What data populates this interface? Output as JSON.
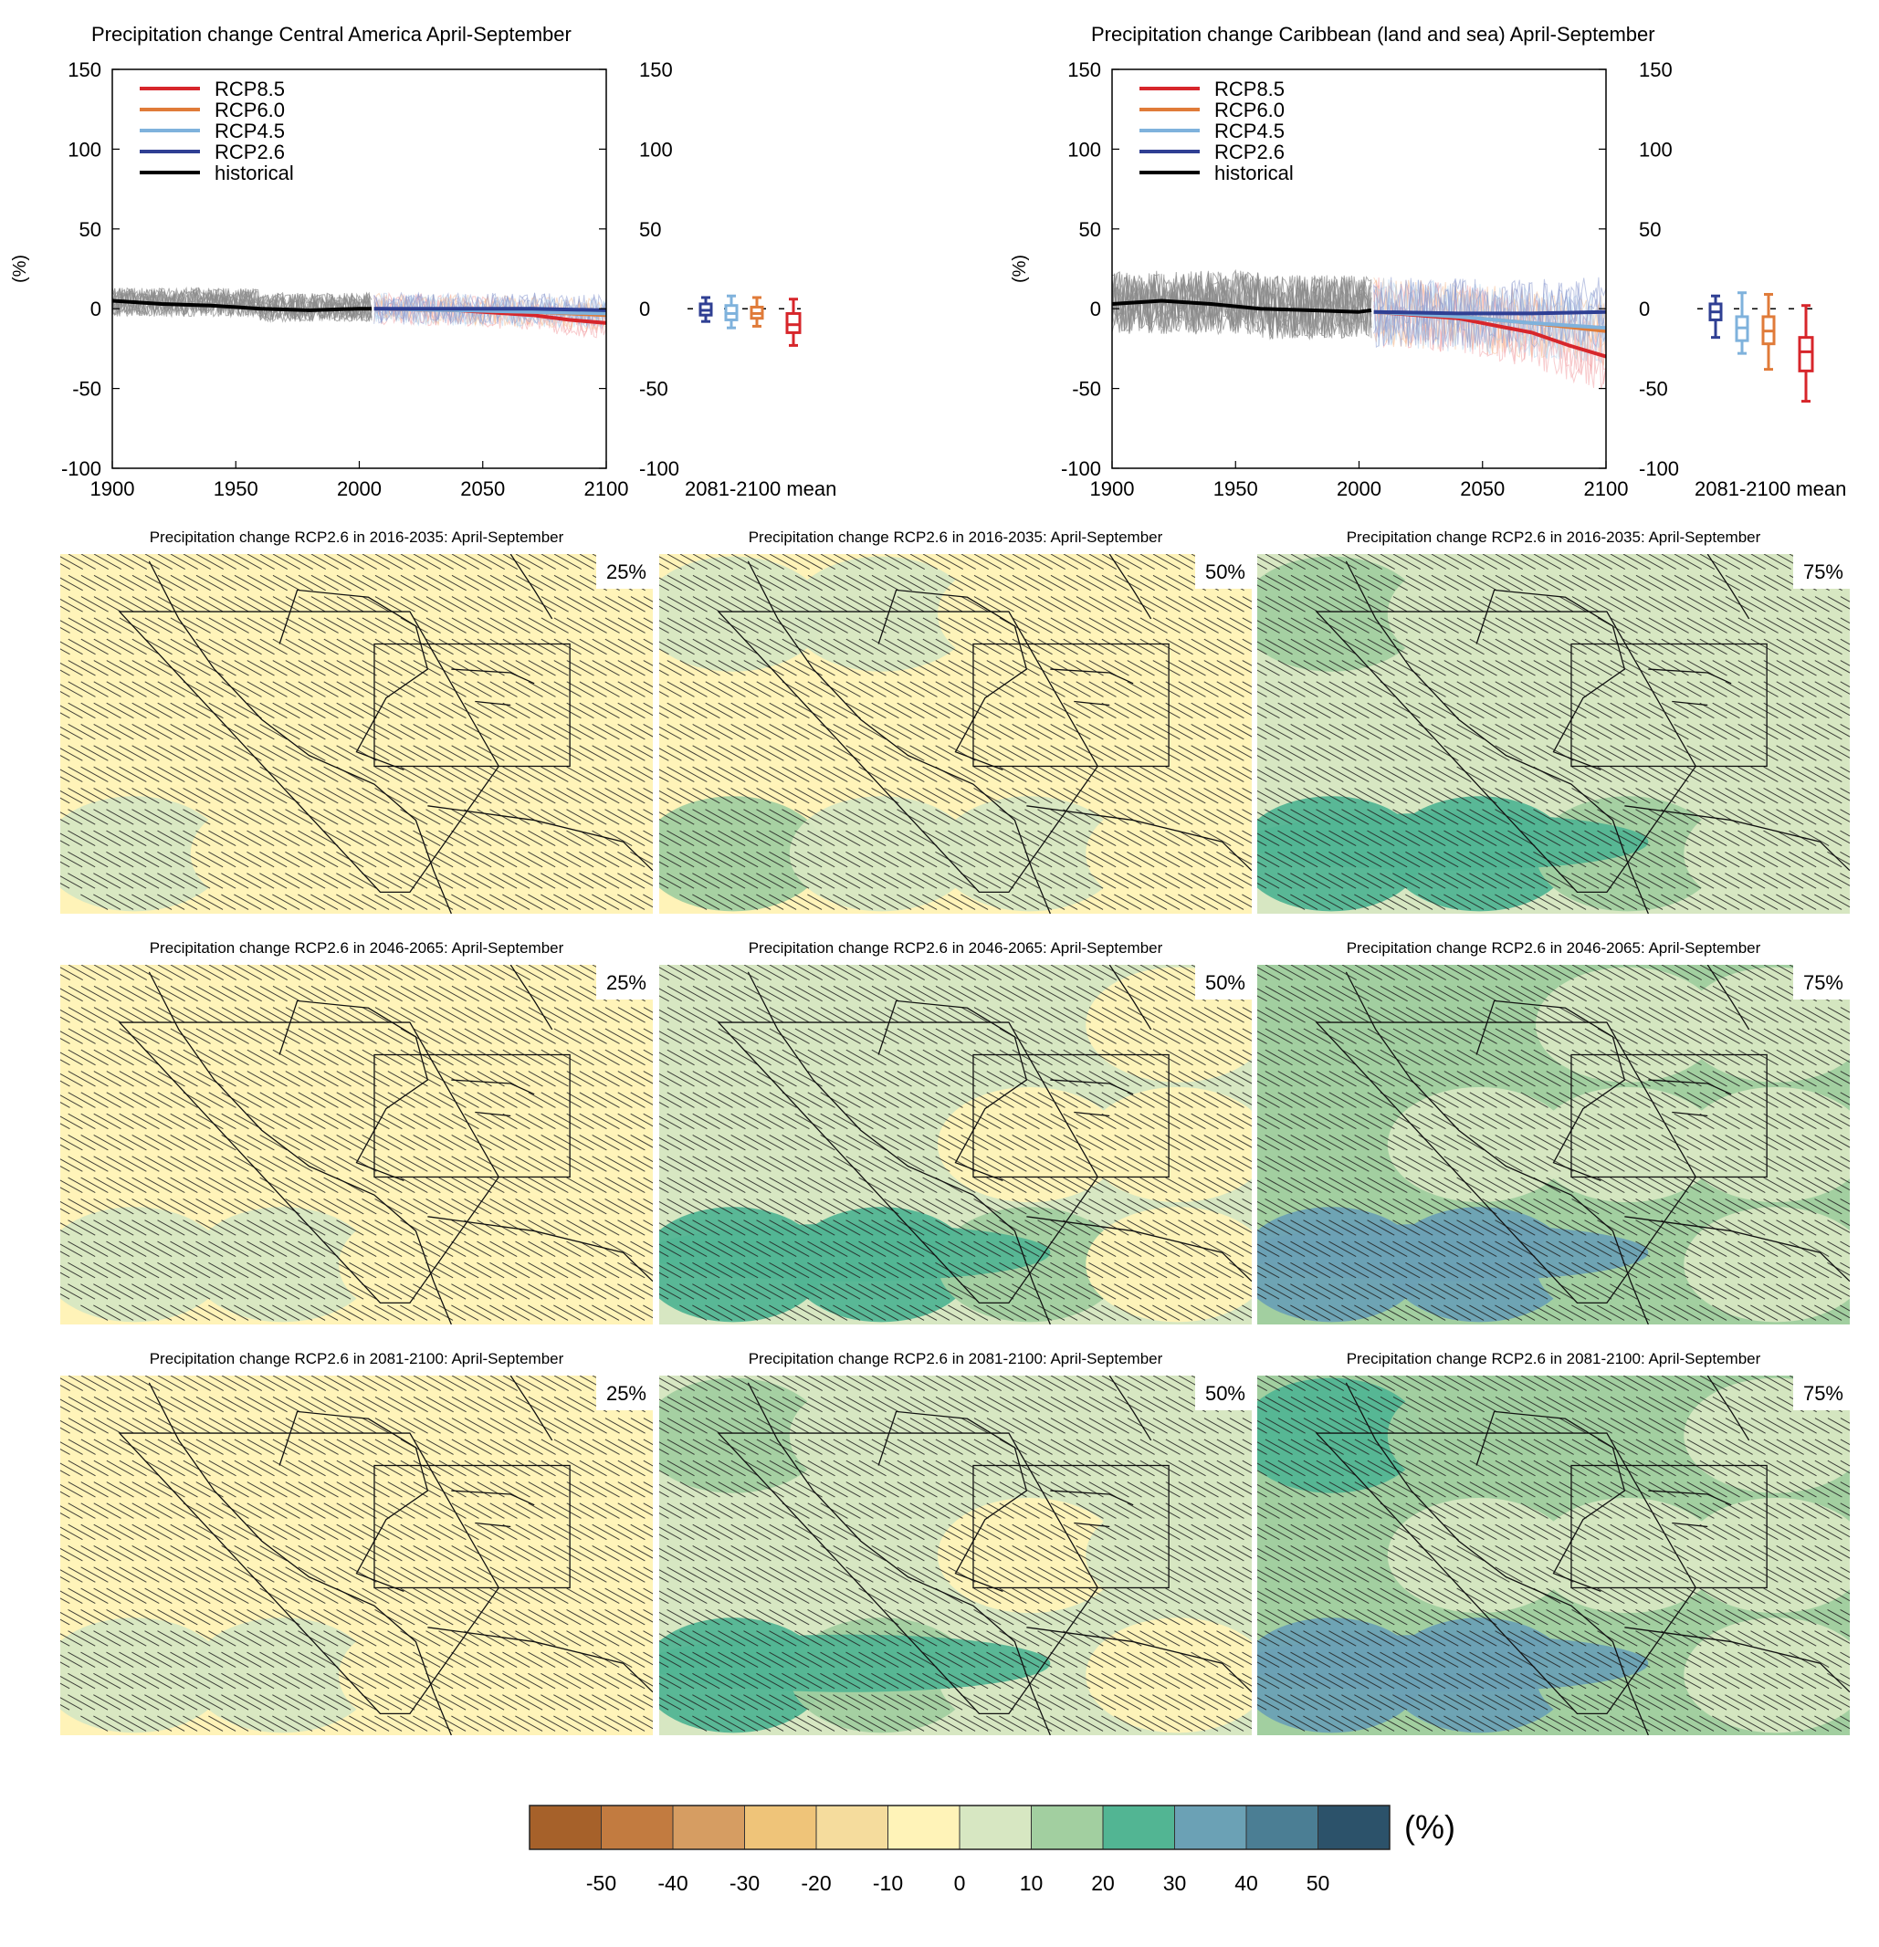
{
  "chart_data": [
    {
      "type": "line",
      "title": "Precipitation change Central America April-September",
      "ylabel": "(%)",
      "xlim": [
        1900,
        2100
      ],
      "ylim": [
        -100,
        150
      ],
      "x_ticks": [
        "1900",
        "1950",
        "2000",
        "2050",
        "2100"
      ],
      "y_ticks": [
        "150",
        "100",
        "50",
        "0",
        "-50",
        "-100"
      ],
      "legend": [
        "RCP8.5",
        "RCP6.0",
        "RCP4.5",
        "RCP2.6",
        "historical"
      ],
      "legend_position": "top-left",
      "series": [
        {
          "name": "historical",
          "color": "#000000",
          "x": [
            1900,
            1920,
            1940,
            1960,
            1980,
            2000,
            2005
          ],
          "values": [
            5,
            3,
            2,
            0,
            -1,
            0,
            0
          ]
        },
        {
          "name": "RCP2.6",
          "color": "#2f3f93",
          "x": [
            2006,
            2040,
            2070,
            2100
          ],
          "values": [
            0,
            0,
            0,
            -1
          ]
        },
        {
          "name": "RCP4.5",
          "color": "#7fb2dc",
          "x": [
            2006,
            2040,
            2070,
            2100
          ],
          "values": [
            0,
            -1,
            -2,
            -3
          ]
        },
        {
          "name": "RCP6.0",
          "color": "#e07b39",
          "x": [
            2006,
            2040,
            2070,
            2100
          ],
          "values": [
            0,
            -1,
            -2,
            -4
          ]
        },
        {
          "name": "RCP8.5",
          "color": "#d7262b",
          "x": [
            2006,
            2040,
            2070,
            2085,
            2100
          ],
          "values": [
            0,
            -1,
            -4,
            -7,
            -9
          ]
        }
      ],
      "boxplot_label": "2081-2100 mean",
      "boxplots": [
        {
          "name": "RCP2.6",
          "color": "#2f3f93",
          "min": -8,
          "q1": -4,
          "median": -1,
          "q3": 3,
          "max": 7
        },
        {
          "name": "RCP4.5",
          "color": "#7fb2dc",
          "min": -12,
          "q1": -7,
          "median": -3,
          "q3": 2,
          "max": 8
        },
        {
          "name": "RCP6.0",
          "color": "#e07b39",
          "min": -11,
          "q1": -6,
          "median": -3,
          "q3": 1,
          "max": 7
        },
        {
          "name": "RCP8.5",
          "color": "#d7262b",
          "min": -23,
          "q1": -15,
          "median": -10,
          "q3": -3,
          "max": 6
        }
      ]
    },
    {
      "type": "line",
      "title": "Precipitation change Caribbean (land and sea) April-September",
      "ylabel": "(%)",
      "xlim": [
        1900,
        2100
      ],
      "ylim": [
        -100,
        150
      ],
      "x_ticks": [
        "1900",
        "1950",
        "2000",
        "2050",
        "2100"
      ],
      "y_ticks": [
        "150",
        "100",
        "50",
        "0",
        "-50",
        "-100"
      ],
      "legend": [
        "RCP8.5",
        "RCP6.0",
        "RCP4.5",
        "RCP2.6",
        "historical"
      ],
      "legend_position": "top-left",
      "series": [
        {
          "name": "historical",
          "color": "#000000",
          "x": [
            1900,
            1920,
            1940,
            1960,
            1980,
            2000,
            2005
          ],
          "values": [
            3,
            5,
            3,
            0,
            -1,
            -2,
            -1
          ]
        },
        {
          "name": "RCP2.6",
          "color": "#2f3f93",
          "x": [
            2006,
            2040,
            2070,
            2100
          ],
          "values": [
            -2,
            -3,
            -3,
            -2
          ]
        },
        {
          "name": "RCP4.5",
          "color": "#7fb2dc",
          "x": [
            2006,
            2040,
            2070,
            2100
          ],
          "values": [
            -2,
            -5,
            -9,
            -12
          ]
        },
        {
          "name": "RCP6.0",
          "color": "#e07b39",
          "x": [
            2006,
            2040,
            2070,
            2100
          ],
          "values": [
            -2,
            -5,
            -9,
            -14
          ]
        },
        {
          "name": "RCP8.5",
          "color": "#d7262b",
          "x": [
            2006,
            2040,
            2070,
            2085,
            2100
          ],
          "values": [
            -2,
            -6,
            -15,
            -23,
            -30
          ]
        }
      ],
      "boxplot_label": "2081-2100 mean",
      "boxplots": [
        {
          "name": "RCP2.6",
          "color": "#2f3f93",
          "min": -18,
          "q1": -7,
          "median": -2,
          "q3": 3,
          "max": 8
        },
        {
          "name": "RCP4.5",
          "color": "#7fb2dc",
          "min": -28,
          "q1": -20,
          "median": -12,
          "q3": -5,
          "max": 10
        },
        {
          "name": "RCP6.0",
          "color": "#e07b39",
          "min": -38,
          "q1": -22,
          "median": -14,
          "q3": -5,
          "max": 9
        },
        {
          "name": "RCP8.5",
          "color": "#d7262b",
          "min": -58,
          "q1": -39,
          "median": -27,
          "q3": -18,
          "max": 2
        }
      ]
    },
    {
      "type": "heatmap",
      "description_panels": "3x3 grid of precipitation change maps",
      "panels": [
        {
          "title": "Precipitation change RCP2.6 in 2016-2035: April-September",
          "percentile": "25%",
          "pattern": [
            [
              -10,
              -5,
              -5,
              -10
            ],
            [
              -5,
              -5,
              -5,
              -10
            ],
            [
              5,
              -5,
              -5,
              -5
            ]
          ]
        },
        {
          "title": "Precipitation change RCP2.6 in 2016-2035: April-September",
          "percentile": "50%",
          "pattern": [
            [
              5,
              5,
              -5,
              -5
            ],
            [
              -5,
              -5,
              -5,
              -5
            ],
            [
              10,
              5,
              5,
              -5
            ]
          ]
        },
        {
          "title": "Precipitation change RCP2.6 in 2016-2035: April-September",
          "percentile": "75%",
          "pattern": [
            [
              10,
              5,
              5,
              5
            ],
            [
              5,
              5,
              5,
              5
            ],
            [
              20,
              20,
              10,
              5
            ]
          ]
        },
        {
          "title": "Precipitation change RCP2.6 in 2046-2065: April-September",
          "percentile": "25%",
          "pattern": [
            [
              -10,
              -5,
              -5,
              -5
            ],
            [
              -5,
              -5,
              -10,
              -5
            ],
            [
              5,
              5,
              -5,
              -10
            ]
          ]
        },
        {
          "title": "Precipitation change RCP2.6 in 2046-2065: April-September",
          "percentile": "50%",
          "pattern": [
            [
              5,
              5,
              5,
              -5
            ],
            [
              5,
              5,
              -5,
              -5
            ],
            [
              20,
              20,
              10,
              -5
            ]
          ]
        },
        {
          "title": "Precipitation change RCP2.6 in 2046-2065: April-September",
          "percentile": "75%",
          "pattern": [
            [
              10,
              10,
              5,
              5
            ],
            [
              10,
              5,
              5,
              5
            ],
            [
              30,
              30,
              10,
              5
            ]
          ]
        },
        {
          "title": "Precipitation change RCP2.6 in 2081-2100: April-September",
          "percentile": "25%",
          "pattern": [
            [
              -10,
              -5,
              -5,
              -5
            ],
            [
              -5,
              -5,
              -5,
              -10
            ],
            [
              5,
              5,
              -5,
              -5
            ]
          ]
        },
        {
          "title": "Precipitation change RCP2.6 in 2081-2100: April-September",
          "percentile": "50%",
          "pattern": [
            [
              10,
              5,
              5,
              5
            ],
            [
              5,
              5,
              -5,
              5
            ],
            [
              20,
              10,
              5,
              -5
            ]
          ]
        },
        {
          "title": "Precipitation change RCP2.6 in 2081-2100: April-September",
          "percentile": "75%",
          "pattern": [
            [
              20,
              10,
              10,
              5
            ],
            [
              10,
              5,
              5,
              5
            ],
            [
              30,
              30,
              10,
              5
            ]
          ]
        }
      ]
    }
  ],
  "colorbar": {
    "unit": "(%)",
    "labels": [
      "-50",
      "-40",
      "-30",
      "-20",
      "-10",
      "0",
      "10",
      "20",
      "30",
      "40",
      "50"
    ],
    "colors": [
      "#a6612a",
      "#c27b40",
      "#d69d62",
      "#efc479",
      "#f5dc9d",
      "#fff3b8",
      "#d7e7c2",
      "#a2cfa0",
      "#52b593",
      "#6ba1b5",
      "#4b7e94",
      "#2c526a"
    ]
  }
}
